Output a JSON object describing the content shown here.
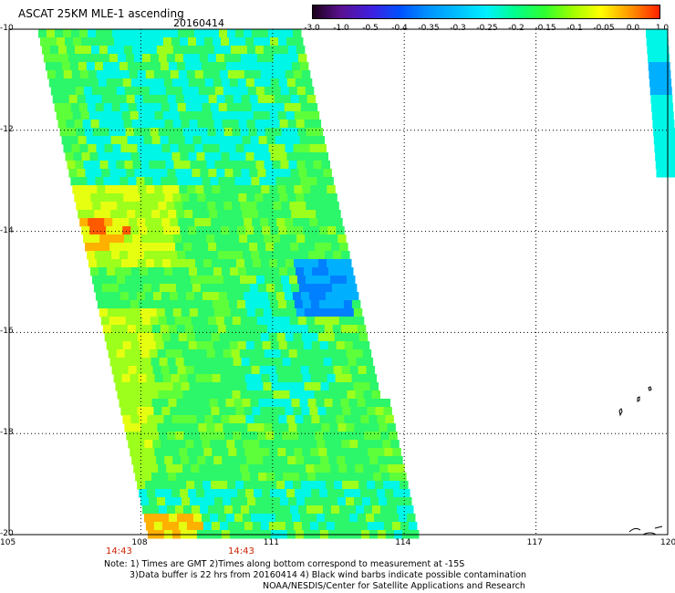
{
  "header": {
    "title": "ASCAT 25KM MLE-1 ascending",
    "date": "20160414"
  },
  "colorbar": {
    "tick_labels": [
      "-3.0",
      "-1.0",
      "-0.5",
      "-0.4",
      "-0.35",
      "-0.3",
      "-0.25",
      "-0.2",
      "-0.15",
      "-0.1",
      "-0.05",
      "0.0",
      "1.0"
    ],
    "colors": [
      "#1a001a",
      "#5a1090",
      "#4020e0",
      "#0050ff",
      "#0090ff",
      "#00c0ff",
      "#00f0ff",
      "#00ff90",
      "#30ff30",
      "#a0ff00",
      "#ffff00",
      "#ff9000",
      "#ff2000"
    ]
  },
  "map": {
    "lat_labels": [
      "-10",
      "-12",
      "-14",
      "-16",
      "-18",
      "-20"
    ],
    "lon_labels": [
      "105",
      "108",
      "111",
      "114",
      "117",
      "120"
    ],
    "lat_range": [
      -20,
      -10
    ],
    "lon_range": [
      105,
      120
    ],
    "gridlines": true,
    "pass_times": [
      "14:43",
      "14:43"
    ],
    "swath_colors": {
      "main": "#2cf66a",
      "light": "#5dff3a",
      "cyan": "#00f6e6",
      "bright": "#9cff1c",
      "yellow": "#e6ff10",
      "orange": "#ffb000",
      "red": "#ff5a00",
      "blue": "#00b0ff",
      "deepblue": "#0080ff"
    }
  },
  "notes": {
    "line1": "Note: 1) Times are GMT 2)Times along bottom correspond to measurement at -15S",
    "line2": "3)Data buffer is 22 hrs from 20160414 4) Black wind barbs indicate possible contamination",
    "line3": "NOAA/NESDIS/Center for Satellite Applications and Research"
  }
}
